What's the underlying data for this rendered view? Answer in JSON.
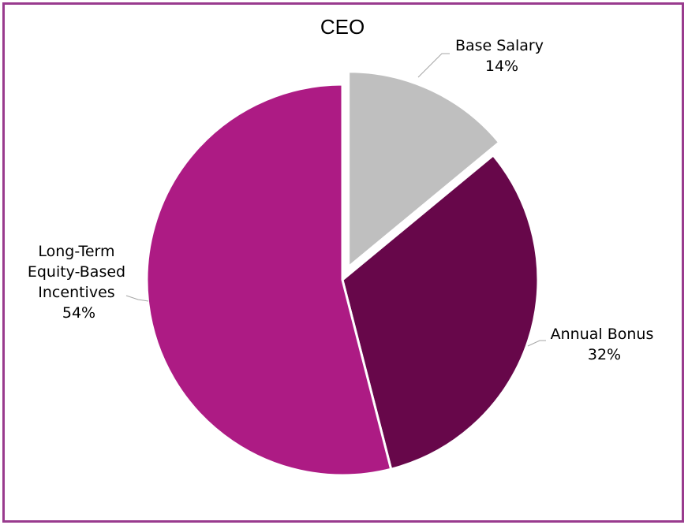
{
  "chart_data": {
    "type": "pie",
    "title": "CEO",
    "slices": [
      {
        "name": "Base Salary",
        "label_lines": [
          "Base Salary"
        ],
        "value": 14,
        "value_label": "14%",
        "color": "#bfbfbf",
        "exploded": true
      },
      {
        "name": "Annual Bonus",
        "label_lines": [
          "Annual Bonus"
        ],
        "value": 32,
        "value_label": "32%",
        "color": "#67074a",
        "exploded": false
      },
      {
        "name": "Long-Term Equity-Based Incentives",
        "label_lines": [
          "Long-Term",
          "Equity-Based",
          "Incentives"
        ],
        "value": 54,
        "value_label": "54%",
        "color": "#ad1b84",
        "exploded": false
      }
    ],
    "start_angle": "12 o'clock",
    "direction": "clockwise",
    "legend": "none",
    "frame_color": "#993b8e"
  }
}
